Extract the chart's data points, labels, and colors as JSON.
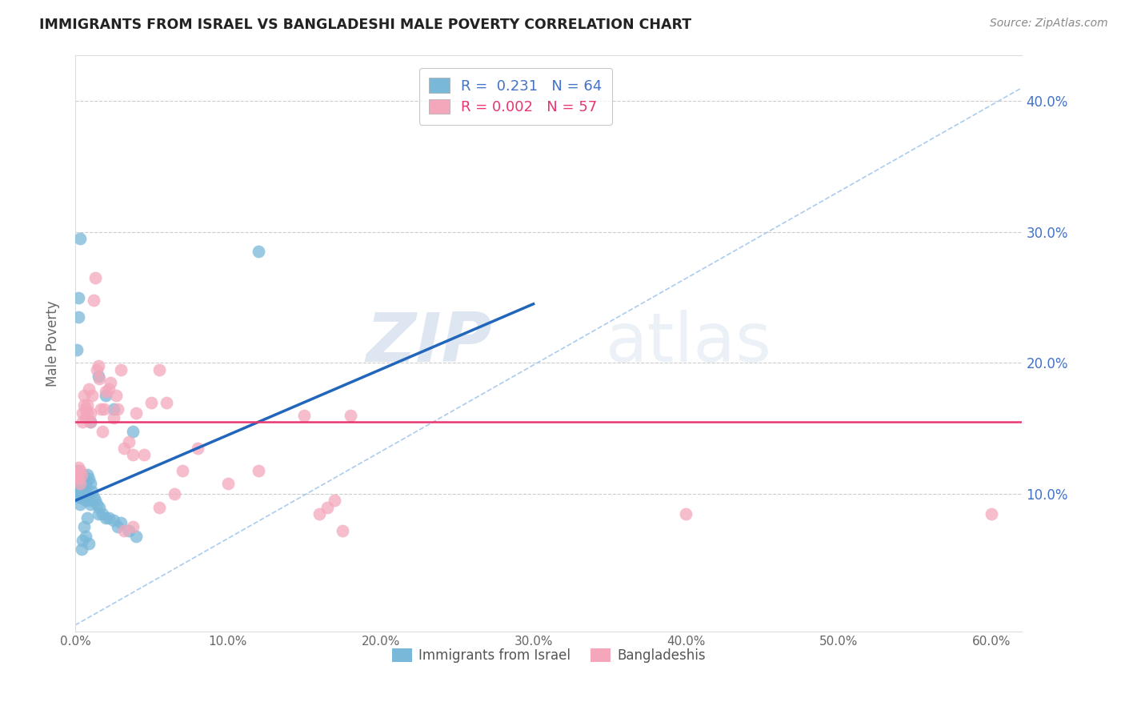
{
  "title": "IMMIGRANTS FROM ISRAEL VS BANGLADESHI MALE POVERTY CORRELATION CHART",
  "source": "Source: ZipAtlas.com",
  "ylabel": "Male Poverty",
  "xlim": [
    0.0,
    0.62
  ],
  "ylim": [
    -0.005,
    0.435
  ],
  "legend1_label": "Immigrants from Israel",
  "legend2_label": "Bangladeshis",
  "R1": "0.231",
  "N1": "64",
  "R2": "0.002",
  "N2": "57",
  "blue_color": "#7ab8d9",
  "pink_color": "#f4a7bb",
  "trend_blue_color": "#2266bb",
  "trend_pink_color": "#e8366e",
  "dashed_line_color": "#aaccee",
  "watermark_zip": "ZIP",
  "watermark_atlas": "atlas",
  "blue_scatter_x": [
    0.001,
    0.001,
    0.001,
    0.001,
    0.002,
    0.002,
    0.002,
    0.002,
    0.002,
    0.003,
    0.003,
    0.003,
    0.003,
    0.003,
    0.004,
    0.004,
    0.004,
    0.004,
    0.005,
    0.005,
    0.005,
    0.005,
    0.006,
    0.006,
    0.006,
    0.007,
    0.007,
    0.007,
    0.008,
    0.008,
    0.009,
    0.009,
    0.01,
    0.01,
    0.011,
    0.012,
    0.013,
    0.014,
    0.015,
    0.016,
    0.018,
    0.02,
    0.022,
    0.025,
    0.028,
    0.03,
    0.035,
    0.04,
    0.001,
    0.002,
    0.002,
    0.003,
    0.004,
    0.005,
    0.006,
    0.007,
    0.008,
    0.009,
    0.01,
    0.015,
    0.02,
    0.025,
    0.038,
    0.12
  ],
  "blue_scatter_y": [
    0.108,
    0.112,
    0.118,
    0.1,
    0.108,
    0.115,
    0.108,
    0.102,
    0.098,
    0.115,
    0.108,
    0.1,
    0.098,
    0.092,
    0.112,
    0.108,
    0.102,
    0.098,
    0.115,
    0.108,
    0.102,
    0.098,
    0.112,
    0.105,
    0.098,
    0.108,
    0.102,
    0.095,
    0.115,
    0.098,
    0.112,
    0.095,
    0.108,
    0.092,
    0.102,
    0.098,
    0.095,
    0.092,
    0.085,
    0.09,
    0.085,
    0.082,
    0.082,
    0.08,
    0.075,
    0.078,
    0.072,
    0.068,
    0.21,
    0.25,
    0.235,
    0.295,
    0.058,
    0.065,
    0.075,
    0.068,
    0.082,
    0.062,
    0.155,
    0.19,
    0.175,
    0.165,
    0.148,
    0.285
  ],
  "pink_scatter_x": [
    0.001,
    0.002,
    0.002,
    0.003,
    0.003,
    0.004,
    0.005,
    0.005,
    0.006,
    0.006,
    0.007,
    0.007,
    0.008,
    0.008,
    0.009,
    0.01,
    0.01,
    0.011,
    0.012,
    0.013,
    0.014,
    0.015,
    0.016,
    0.017,
    0.018,
    0.019,
    0.02,
    0.022,
    0.023,
    0.025,
    0.027,
    0.028,
    0.03,
    0.032,
    0.035,
    0.038,
    0.04,
    0.045,
    0.05,
    0.055,
    0.06,
    0.065,
    0.07,
    0.08,
    0.1,
    0.12,
    0.15,
    0.16,
    0.165,
    0.17,
    0.175,
    0.18,
    0.4,
    0.6,
    0.055,
    0.038,
    0.032
  ],
  "pink_scatter_y": [
    0.115,
    0.112,
    0.12,
    0.118,
    0.108,
    0.115,
    0.162,
    0.155,
    0.175,
    0.168,
    0.165,
    0.158,
    0.168,
    0.162,
    0.18,
    0.162,
    0.155,
    0.175,
    0.248,
    0.265,
    0.195,
    0.198,
    0.188,
    0.165,
    0.148,
    0.165,
    0.178,
    0.18,
    0.185,
    0.158,
    0.175,
    0.165,
    0.195,
    0.135,
    0.14,
    0.13,
    0.162,
    0.13,
    0.17,
    0.195,
    0.17,
    0.1,
    0.118,
    0.135,
    0.108,
    0.118,
    0.16,
    0.085,
    0.09,
    0.095,
    0.072,
    0.16,
    0.085,
    0.085,
    0.09,
    0.075,
    0.072
  ],
  "blue_trend_x": [
    0.0,
    0.3
  ],
  "blue_trend_y": [
    0.095,
    0.245
  ],
  "pink_trend_y": 0.155,
  "dashed_line_x": [
    0.0,
    0.62
  ],
  "dashed_line_y": [
    0.0,
    0.41
  ],
  "ytick_vals": [
    0.1,
    0.2,
    0.3,
    0.4
  ],
  "ytick_labels": [
    "10.0%",
    "20.0%",
    "30.0%",
    "40.0%"
  ],
  "xtick_vals": [
    0.0,
    0.1,
    0.2,
    0.3,
    0.4,
    0.5,
    0.6
  ],
  "xtick_labels": [
    "0.0%",
    "10.0%",
    "20.0%",
    "30.0%",
    "40.0%",
    "50.0%",
    "60.0%"
  ]
}
